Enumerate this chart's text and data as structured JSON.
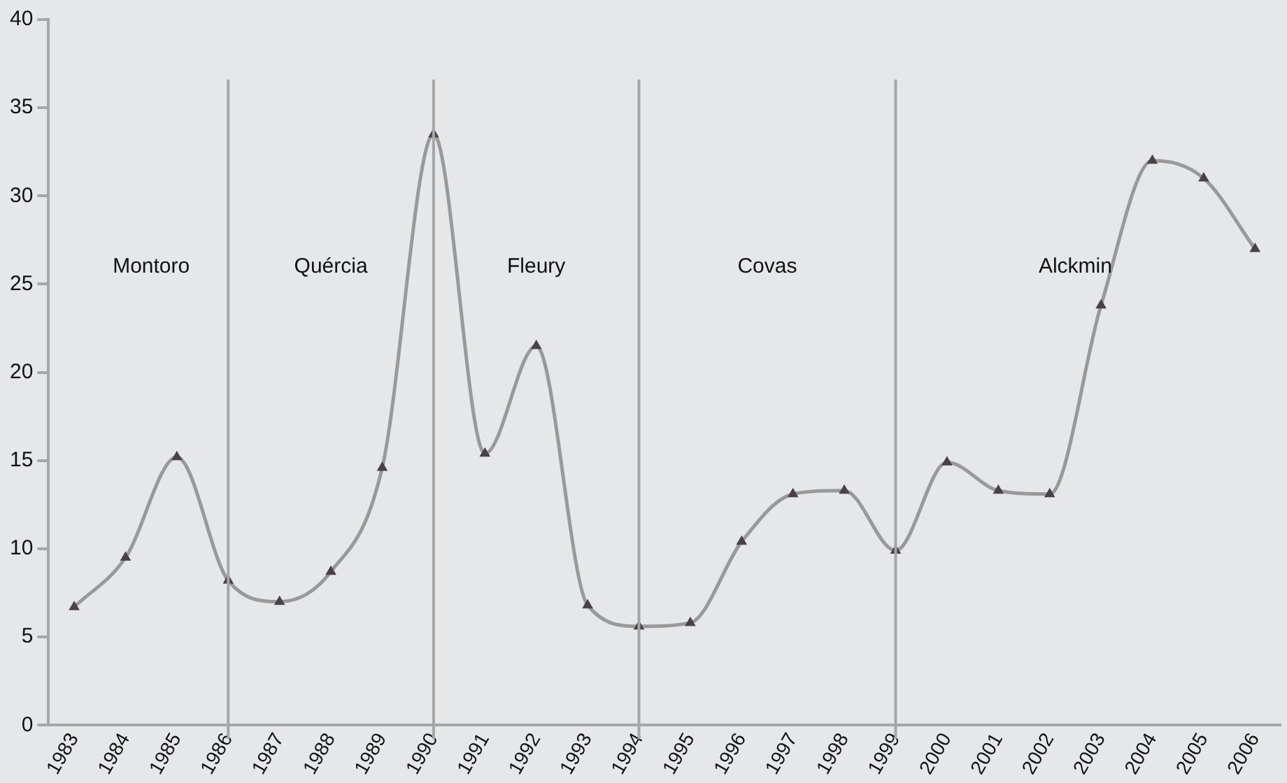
{
  "chart_data": {
    "type": "line",
    "categories": [
      "1983",
      "1984",
      "1985",
      "1986",
      "1987",
      "1988",
      "1989",
      "1990",
      "1991",
      "1992",
      "1993",
      "1994",
      "1995",
      "1996",
      "1997",
      "1998",
      "1999",
      "2000",
      "2001",
      "2002",
      "2003",
      "2004",
      "2005",
      "2006"
    ],
    "series": [
      {
        "color": "#999999",
        "values": [
          6.7,
          9.5,
          15.2,
          8.2,
          7.0,
          8.7,
          14.6,
          33.5,
          15.4,
          21.5,
          6.8,
          5.6,
          5.8,
          10.4,
          13.1,
          13.3,
          9.9,
          14.9,
          13.3,
          13.1,
          23.8,
          32.0,
          31.0,
          27.0
        ]
      }
    ],
    "ylim": [
      0,
      40
    ],
    "yticks": [
      0,
      5,
      10,
      15,
      20,
      25,
      30,
      35,
      40
    ],
    "ref_lines": [
      {
        "axis": "x",
        "value": "1986",
        "color": "#a6a6a6"
      },
      {
        "axis": "x",
        "value": "1990",
        "color": "#a6a6a6"
      },
      {
        "axis": "x",
        "value": "1994",
        "color": "#a6a6a6"
      },
      {
        "axis": "x",
        "value": "1999",
        "color": "#a6a6a6"
      }
    ],
    "annotations": [
      "Montoro",
      "Quércia",
      "Fleury",
      "Covas",
      "Alckmin"
    ],
    "marker": "triangle",
    "grid": false,
    "legend": false
  }
}
